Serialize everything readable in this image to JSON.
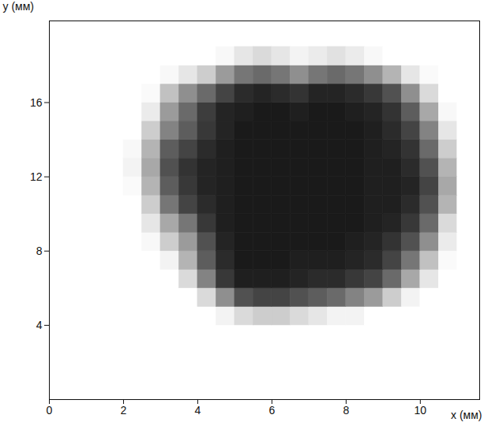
{
  "chart_data": {
    "type": "heatmap",
    "x_label": "x (мм)",
    "y_label": "y (мм)",
    "xlim": [
      0,
      11.6
    ],
    "ylim": [
      0,
      20.4
    ],
    "xticks": [
      0,
      2,
      4,
      6,
      8,
      10
    ],
    "yticks": [
      4,
      8,
      12,
      16
    ],
    "xbins": [
      2,
      2.5,
      3,
      3.5,
      4,
      4.5,
      5,
      5.5,
      6,
      6.5,
      7,
      7.5,
      8,
      8.5,
      9,
      9.5,
      10,
      10.5,
      11,
      11.5
    ],
    "ybins": [
      4,
      5,
      6,
      7,
      8,
      9,
      10,
      11,
      12,
      13,
      14,
      15,
      16,
      17,
      18,
      19
    ],
    "cells": [
      [
        0,
        0,
        0,
        0,
        0,
        0.05,
        0.15,
        0.2,
        0.2,
        0.15,
        0.1,
        0.05,
        0.05,
        0,
        0,
        0,
        0,
        0,
        0
      ],
      [
        0,
        0,
        0,
        0,
        0.15,
        0.45,
        0.7,
        0.75,
        0.75,
        0.7,
        0.65,
        0.6,
        0.5,
        0.4,
        0.2,
        0.05,
        0,
        0,
        0
      ],
      [
        0,
        0,
        0,
        0.15,
        0.5,
        0.8,
        0.9,
        0.9,
        0.9,
        0.88,
        0.85,
        0.85,
        0.8,
        0.75,
        0.6,
        0.35,
        0.1,
        0,
        0
      ],
      [
        0,
        0,
        0.05,
        0.3,
        0.65,
        0.85,
        0.92,
        0.92,
        0.92,
        0.9,
        0.9,
        0.9,
        0.88,
        0.85,
        0.75,
        0.55,
        0.25,
        0.02,
        0
      ],
      [
        0,
        0.03,
        0.2,
        0.4,
        0.7,
        0.88,
        0.92,
        0.92,
        0.92,
        0.92,
        0.92,
        0.92,
        0.9,
        0.88,
        0.82,
        0.7,
        0.45,
        0.08,
        0
      ],
      [
        0,
        0.1,
        0.35,
        0.55,
        0.8,
        0.9,
        0.92,
        0.92,
        0.92,
        0.92,
        0.92,
        0.92,
        0.92,
        0.9,
        0.88,
        0.8,
        0.6,
        0.15,
        0
      ],
      [
        0,
        0.2,
        0.55,
        0.75,
        0.85,
        0.9,
        0.92,
        0.92,
        0.92,
        0.92,
        0.92,
        0.92,
        0.92,
        0.9,
        0.9,
        0.85,
        0.7,
        0.3,
        0
      ],
      [
        0.02,
        0.3,
        0.65,
        0.8,
        0.88,
        0.9,
        0.92,
        0.92,
        0.92,
        0.92,
        0.92,
        0.92,
        0.92,
        0.9,
        0.9,
        0.88,
        0.75,
        0.35,
        0
      ],
      [
        0.05,
        0.35,
        0.7,
        0.82,
        0.88,
        0.9,
        0.92,
        0.92,
        0.92,
        0.92,
        0.92,
        0.92,
        0.92,
        0.9,
        0.9,
        0.85,
        0.7,
        0.3,
        0
      ],
      [
        0.03,
        0.3,
        0.65,
        0.75,
        0.85,
        0.9,
        0.92,
        0.92,
        0.92,
        0.92,
        0.92,
        0.92,
        0.92,
        0.9,
        0.88,
        0.82,
        0.6,
        0.2,
        0
      ],
      [
        0,
        0.2,
        0.5,
        0.65,
        0.8,
        0.88,
        0.92,
        0.92,
        0.92,
        0.92,
        0.92,
        0.92,
        0.92,
        0.9,
        0.85,
        0.75,
        0.5,
        0.1,
        0
      ],
      [
        0,
        0.08,
        0.4,
        0.6,
        0.78,
        0.88,
        0.9,
        0.92,
        0.92,
        0.9,
        0.92,
        0.92,
        0.9,
        0.88,
        0.82,
        0.65,
        0.35,
        0.03,
        0
      ],
      [
        0,
        0.02,
        0.25,
        0.45,
        0.6,
        0.75,
        0.85,
        0.88,
        0.85,
        0.82,
        0.88,
        0.88,
        0.85,
        0.8,
        0.7,
        0.45,
        0.15,
        0,
        0
      ],
      [
        0,
        0,
        0.03,
        0.1,
        0.2,
        0.4,
        0.55,
        0.6,
        0.55,
        0.45,
        0.55,
        0.6,
        0.55,
        0.45,
        0.3,
        0.1,
        0.02,
        0,
        0
      ],
      [
        0,
        0,
        0,
        0,
        0,
        0.03,
        0.1,
        0.15,
        0.1,
        0.05,
        0.08,
        0.12,
        0.08,
        0.03,
        0,
        0,
        0,
        0,
        0
      ]
    ]
  }
}
